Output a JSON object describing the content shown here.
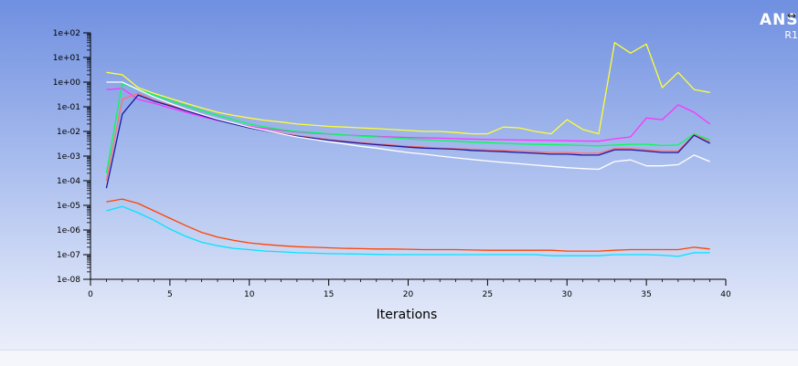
{
  "branding": {
    "logo_text": "ANSY",
    "version_text": "R1",
    "expand_icon": "double-arrow-horizontal-icon"
  },
  "chart_data": {
    "type": "line",
    "title": "",
    "xlabel": "Iterations",
    "ylabel": "",
    "y_scale": "log",
    "xlim": [
      0,
      40
    ],
    "ylim": [
      1e-08,
      100
    ],
    "x_ticks": [
      "0",
      "5",
      "10",
      "15",
      "20",
      "25",
      "30",
      "35",
      "40"
    ],
    "y_ticks": [
      "1e-08",
      "1e-07",
      "1e-06",
      "1e-05",
      "1e-04",
      "1e-03",
      "1e-02",
      "1e-01",
      "1e+00",
      "1e+01",
      "1e+02"
    ],
    "grid": false,
    "legend": "none",
    "series": [
      {
        "color": "#ffff33",
        "x": [
          1,
          2,
          3,
          4,
          5,
          6,
          7,
          8,
          9,
          10,
          11,
          12,
          13,
          14,
          15,
          16,
          17,
          18,
          19,
          20,
          21,
          22,
          23,
          24,
          25,
          26,
          27,
          28,
          29,
          30,
          31,
          32,
          33,
          34,
          35,
          36,
          37,
          38,
          39
        ],
        "values": [
          2.5,
          2,
          0.6,
          0.35,
          0.22,
          0.14,
          0.09,
          0.06,
          0.045,
          0.035,
          0.028,
          0.024,
          0.02,
          0.018,
          0.016,
          0.015,
          0.014,
          0.013,
          0.012,
          0.011,
          0.01,
          0.01,
          0.009,
          0.008,
          0.008,
          0.015,
          0.014,
          0.01,
          0.008,
          0.03,
          0.012,
          0.008,
          40,
          15,
          35,
          0.6,
          2.5,
          0.5,
          0.38
        ]
      },
      {
        "color": "#ff33ff",
        "x": [
          1,
          2,
          3,
          4,
          5,
          6,
          7,
          8,
          9,
          10,
          11,
          12,
          13,
          14,
          15,
          16,
          17,
          18,
          19,
          20,
          21,
          22,
          23,
          24,
          25,
          26,
          27,
          28,
          29,
          30,
          31,
          32,
          33,
          34,
          35,
          36,
          37,
          38,
          39
        ],
        "values": [
          0.5,
          0.55,
          0.2,
          0.14,
          0.09,
          0.06,
          0.04,
          0.028,
          0.021,
          0.016,
          0.013,
          0.011,
          0.0095,
          0.0085,
          0.0078,
          0.0072,
          0.0067,
          0.0063,
          0.006,
          0.0057,
          0.0055,
          0.0053,
          0.0051,
          0.0049,
          0.0047,
          0.0046,
          0.0045,
          0.0044,
          0.0043,
          0.0042,
          0.0041,
          0.004,
          0.005,
          0.006,
          0.035,
          0.03,
          0.12,
          0.06,
          0.02
        ]
      },
      {
        "color": "#00ff55",
        "x": [
          1,
          2,
          3,
          4,
          5,
          6,
          7,
          8,
          9,
          10,
          11,
          12,
          13,
          14,
          15,
          16,
          17,
          18,
          19,
          20,
          21,
          22,
          23,
          24,
          25,
          26,
          27,
          28,
          29,
          30,
          31,
          32,
          33,
          34,
          35,
          36,
          37,
          38,
          39
        ],
        "values": [
          0.0002,
          0.9,
          0.5,
          0.3,
          0.18,
          0.11,
          0.07,
          0.045,
          0.03,
          0.02,
          0.015,
          0.012,
          0.01,
          0.009,
          0.008,
          0.0072,
          0.0065,
          0.006,
          0.0055,
          0.005,
          0.0046,
          0.0043,
          0.004,
          0.0037,
          0.0035,
          0.0033,
          0.0031,
          0.003,
          0.0029,
          0.0028,
          0.0027,
          0.0026,
          0.0028,
          0.003,
          0.003,
          0.0027,
          0.0028,
          0.008,
          0.0045
        ]
      },
      {
        "color": "#ff7070",
        "x": [
          1,
          2,
          3,
          4,
          5,
          6,
          7,
          8,
          9,
          10,
          11,
          12,
          13,
          14,
          15,
          16,
          17,
          18,
          19,
          20,
          21,
          22,
          23,
          24,
          25,
          26,
          27,
          28,
          29,
          30,
          31,
          32,
          33,
          34,
          35,
          36,
          37,
          38,
          39
        ],
        "values": [
          0.0001,
          0.2,
          0.35,
          0.18,
          0.12,
          0.075,
          0.048,
          0.031,
          0.021,
          0.015,
          0.011,
          0.0085,
          0.0068,
          0.0056,
          0.0047,
          0.004,
          0.0035,
          0.0031,
          0.0028,
          0.0025,
          0.0023,
          0.0021,
          0.002,
          0.0019,
          0.0018,
          0.0017,
          0.0016,
          0.0015,
          0.0014,
          0.0014,
          0.0013,
          0.0013,
          0.002,
          0.002,
          0.0018,
          0.0016,
          0.0016,
          0.0075,
          0.0038
        ]
      },
      {
        "color": "#1a1aa0",
        "x": [
          1,
          2,
          3,
          4,
          5,
          6,
          7,
          8,
          9,
          10,
          11,
          12,
          13,
          14,
          15,
          16,
          17,
          18,
          19,
          20,
          21,
          22,
          23,
          24,
          25,
          26,
          27,
          28,
          29,
          30,
          31,
          32,
          33,
          34,
          35,
          36,
          37,
          38,
          39
        ],
        "values": [
          5e-05,
          0.05,
          0.3,
          0.17,
          0.11,
          0.07,
          0.045,
          0.029,
          0.02,
          0.014,
          0.0105,
          0.008,
          0.0064,
          0.0053,
          0.0044,
          0.0038,
          0.0033,
          0.0029,
          0.0026,
          0.0023,
          0.0021,
          0.002,
          0.0019,
          0.0017,
          0.0016,
          0.0015,
          0.0014,
          0.0013,
          0.0012,
          0.0012,
          0.0011,
          0.0011,
          0.0018,
          0.0018,
          0.0016,
          0.0014,
          0.0014,
          0.007,
          0.0033
        ]
      },
      {
        "color": "#ffffff",
        "x": [
          1,
          2,
          3,
          4,
          5,
          6,
          7,
          8,
          9,
          10,
          11,
          12,
          13,
          14,
          15,
          16,
          17,
          18,
          19,
          20,
          21,
          22,
          23,
          24,
          25,
          26,
          27,
          28,
          29,
          30,
          31,
          32,
          33,
          34,
          35,
          36,
          37,
          38,
          39
        ],
        "values": [
          1,
          1,
          0.5,
          0.25,
          0.14,
          0.08,
          0.05,
          0.032,
          0.022,
          0.015,
          0.011,
          0.008,
          0.006,
          0.0048,
          0.0038,
          0.0031,
          0.0025,
          0.0021,
          0.0017,
          0.0014,
          0.0012,
          0.001,
          0.00085,
          0.00073,
          0.00063,
          0.00055,
          0.00049,
          0.00043,
          0.00038,
          0.00034,
          0.00031,
          0.00029,
          0.0006,
          0.0007,
          0.0004,
          0.0004,
          0.00045,
          0.0011,
          0.0006
        ]
      },
      {
        "color": "#ff4400",
        "x": [
          1,
          2,
          3,
          4,
          5,
          6,
          7,
          8,
          9,
          10,
          11,
          12,
          13,
          14,
          15,
          16,
          17,
          18,
          19,
          20,
          21,
          22,
          23,
          24,
          25,
          26,
          27,
          28,
          29,
          30,
          31,
          32,
          33,
          34,
          35,
          36,
          37,
          38,
          39
        ],
        "values": [
          1.4e-05,
          1.8e-05,
          1.2e-05,
          6e-06,
          3e-06,
          1.5e-06,
          8e-07,
          5.2e-07,
          3.8e-07,
          3e-07,
          2.6e-07,
          2.3e-07,
          2.1e-07,
          2e-07,
          1.9e-07,
          1.8e-07,
          1.75e-07,
          1.7e-07,
          1.7e-07,
          1.65e-07,
          1.6e-07,
          1.6e-07,
          1.6e-07,
          1.55e-07,
          1.5e-07,
          1.5e-07,
          1.5e-07,
          1.5e-07,
          1.5e-07,
          1.4e-07,
          1.4e-07,
          1.4e-07,
          1.5e-07,
          1.6e-07,
          1.6e-07,
          1.6e-07,
          1.6e-07,
          2e-07,
          1.7e-07
        ]
      },
      {
        "color": "#00e5ff",
        "x": [
          1,
          2,
          3,
          4,
          5,
          6,
          7,
          8,
          9,
          10,
          11,
          12,
          13,
          14,
          15,
          16,
          17,
          18,
          19,
          20,
          21,
          22,
          23,
          24,
          25,
          26,
          27,
          28,
          29,
          30,
          31,
          32,
          33,
          34,
          35,
          36,
          37,
          38,
          39
        ],
        "values": [
          6e-06,
          9e-06,
          5e-06,
          2.5e-06,
          1.1e-06,
          5.5e-07,
          3.2e-07,
          2.3e-07,
          1.8e-07,
          1.6e-07,
          1.4e-07,
          1.3e-07,
          1.2e-07,
          1.15e-07,
          1.1e-07,
          1.08e-07,
          1.05e-07,
          1.03e-07,
          1e-07,
          1e-07,
          1e-07,
          1e-07,
          1e-07,
          1e-07,
          1e-07,
          1e-07,
          1e-07,
          1e-07,
          9e-08,
          9e-08,
          9e-08,
          9e-08,
          1e-07,
          1e-07,
          1e-07,
          9.5e-08,
          8.5e-08,
          1.2e-07,
          1.2e-07
        ]
      }
    ]
  }
}
